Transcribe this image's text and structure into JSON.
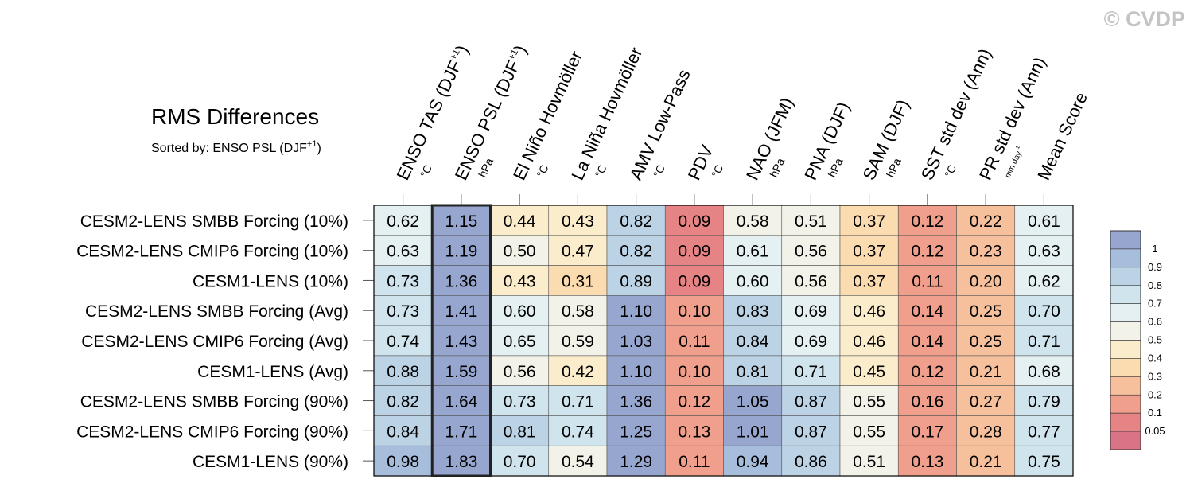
{
  "watermark": "© CVDP",
  "chart_data": {
    "type": "heatmap",
    "title": "RMS Differences",
    "subtitle": {
      "text": "Sorted by: ENSO PSL (DJF",
      "sup": "+1",
      "close": ")"
    },
    "columns": [
      {
        "label": "ENSO TAS (DJF",
        "sup": "+1",
        "close": ")",
        "unit": "°C"
      },
      {
        "label": "ENSO PSL (DJF",
        "sup": "+1",
        "close": ")",
        "unit": "hPa"
      },
      {
        "label": "El Niño Hovmöller",
        "unit": "°C"
      },
      {
        "label": "La Niña Hovmöller",
        "unit": "°C"
      },
      {
        "label": "AMV Low-Pass",
        "unit": "°C"
      },
      {
        "label": "PDV",
        "unit": "°C"
      },
      {
        "label": "NAO (JFM)",
        "unit": "hPa"
      },
      {
        "label": "PNA (DJF)",
        "unit": "hPa"
      },
      {
        "label": "SAM (DJF)",
        "unit": "hPa"
      },
      {
        "label": "SST std dev (Ann)",
        "unit": "°C"
      },
      {
        "label": "PR std dev (Ann)",
        "unit": "mm day",
        "unit_sup": "-1"
      },
      {
        "label": "Mean Score",
        "unit": ""
      }
    ],
    "rows": [
      "CESM2-LENS SMBB Forcing (10%)",
      "CESM2-LENS CMIP6 Forcing (10%)",
      "CESM1-LENS (10%)",
      "CESM2-LENS SMBB Forcing (Avg)",
      "CESM2-LENS CMIP6 Forcing (Avg)",
      "CESM1-LENS (Avg)",
      "CESM2-LENS SMBB Forcing (90%)",
      "CESM2-LENS CMIP6 Forcing (90%)",
      "CESM1-LENS (90%)"
    ],
    "values": [
      [
        "0.62",
        "1.15",
        "0.44",
        "0.43",
        "0.82",
        "0.09",
        "0.58",
        "0.51",
        "0.37",
        "0.12",
        "0.22",
        "0.61"
      ],
      [
        "0.63",
        "1.19",
        "0.50",
        "0.47",
        "0.82",
        "0.09",
        "0.61",
        "0.56",
        "0.37",
        "0.12",
        "0.23",
        "0.63"
      ],
      [
        "0.73",
        "1.36",
        "0.43",
        "0.31",
        "0.89",
        "0.09",
        "0.60",
        "0.56",
        "0.37",
        "0.11",
        "0.20",
        "0.62"
      ],
      [
        "0.73",
        "1.41",
        "0.60",
        "0.58",
        "1.10",
        "0.10",
        "0.83",
        "0.69",
        "0.46",
        "0.14",
        "0.25",
        "0.70"
      ],
      [
        "0.74",
        "1.43",
        "0.65",
        "0.59",
        "1.03",
        "0.11",
        "0.84",
        "0.69",
        "0.46",
        "0.14",
        "0.25",
        "0.71"
      ],
      [
        "0.88",
        "1.59",
        "0.56",
        "0.42",
        "1.10",
        "0.10",
        "0.81",
        "0.71",
        "0.45",
        "0.12",
        "0.21",
        "0.68"
      ],
      [
        "0.82",
        "1.64",
        "0.73",
        "0.71",
        "1.36",
        "0.12",
        "1.05",
        "0.87",
        "0.55",
        "0.16",
        "0.27",
        "0.79"
      ],
      [
        "0.84",
        "1.71",
        "0.81",
        "0.74",
        "1.25",
        "0.13",
        "1.01",
        "0.87",
        "0.55",
        "0.17",
        "0.28",
        "0.77"
      ],
      [
        "0.98",
        "1.83",
        "0.70",
        "0.54",
        "1.29",
        "0.11",
        "0.94",
        "0.86",
        "0.51",
        "0.13",
        "0.21",
        "0.75"
      ]
    ],
    "highlighted_column": 1,
    "colorbar": {
      "levels": [
        "1",
        "0.9",
        "0.8",
        "0.7",
        "0.6",
        "0.5",
        "0.4",
        "0.3",
        "0.2",
        "0.1",
        "0.05"
      ],
      "colors": [
        "#97a6cf",
        "#a6bddc",
        "#bcd3e6",
        "#d0e4ee",
        "#e5f0f3",
        "#f3f2e8",
        "#fbeccb",
        "#fbdcb0",
        "#f6c09d",
        "#ef9f8b",
        "#e68485",
        "#d87486"
      ]
    },
    "bins": [
      0.05,
      0.1,
      0.2,
      0.3,
      0.4,
      0.5,
      0.6,
      0.7,
      0.8,
      0.9,
      1.0
    ]
  }
}
